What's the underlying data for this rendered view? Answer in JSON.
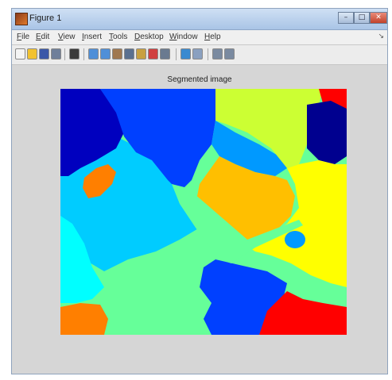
{
  "window": {
    "title": "Figure 1"
  },
  "menu": {
    "items": [
      "File",
      "Edit",
      "View",
      "Insert",
      "Tools",
      "Desktop",
      "Window",
      "Help"
    ]
  },
  "toolbar": {
    "buttons": [
      {
        "name": "new-figure-icon",
        "color": "#f4f4f4"
      },
      {
        "name": "open-file-icon",
        "color": "#f2c230"
      },
      {
        "name": "save-icon",
        "color": "#3a57a8"
      },
      {
        "name": "print-icon",
        "color": "#6f7f9a"
      },
      {
        "name": "select-arrow-icon",
        "color": "#3a3a3a"
      },
      {
        "name": "zoom-in-icon",
        "color": "#4f8fd8"
      },
      {
        "name": "zoom-out-icon",
        "color": "#4f8fd8"
      },
      {
        "name": "pan-icon",
        "color": "#a07850"
      },
      {
        "name": "rotate-icon",
        "color": "#5a7090"
      },
      {
        "name": "data-cursor-icon",
        "color": "#c8a040"
      },
      {
        "name": "brush-icon",
        "color": "#d04040"
      },
      {
        "name": "link-icon",
        "color": "#6a7a90"
      },
      {
        "name": "colorbar-icon",
        "color": "#3a8ad0"
      },
      {
        "name": "legend-icon",
        "color": "#8aa0c0"
      },
      {
        "name": "hide-plot-tools-icon",
        "color": "#7a8aa0"
      },
      {
        "name": "show-plot-tools-icon",
        "color": "#7a8aa0"
      }
    ]
  },
  "plot": {
    "title": "Segmented image",
    "colors": {
      "dark_blue": "#0000bf",
      "blue": "#0040ff",
      "azure": "#0099ff",
      "light_blue": "#00ccff",
      "cyan": "#00ffff",
      "mint": "#66ff99",
      "yellow_green": "#ccff33",
      "yellow": "#ffff00",
      "orange": "#ffbf00",
      "dark_orange": "#ff7f00",
      "red": "#ff0000",
      "navy": "#00008f"
    }
  }
}
